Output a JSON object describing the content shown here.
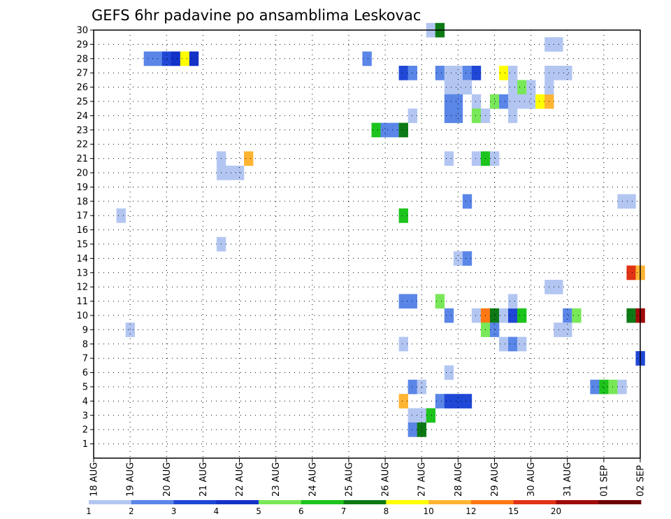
{
  "chart_data": {
    "type": "heatmap",
    "title": "GEFS 6hr padavine po ansamblima Leskovac",
    "xlabel": "",
    "ylabel": "",
    "x_ticks": [
      "18 AUG",
      "19 AUG",
      "20 AUG",
      "21 AUG",
      "22 AUG",
      "23 AUG",
      "24 AUG",
      "25 AUG",
      "26 AUG",
      "27 AUG",
      "28 AUG",
      "29 AUG",
      "30 AUG",
      "31 AUG",
      "01 SEP",
      "02 SEP"
    ],
    "x_range_days": [
      0,
      15
    ],
    "y_ticks": [
      1,
      2,
      3,
      4,
      5,
      6,
      7,
      8,
      9,
      10,
      11,
      12,
      13,
      14,
      15,
      16,
      17,
      18,
      19,
      20,
      21,
      22,
      23,
      24,
      25,
      26,
      27,
      28,
      29,
      30
    ],
    "y_range": [
      0,
      30
    ],
    "time_step_hours": 6,
    "grid": true,
    "colorbar": {
      "placement": "bottom",
      "labels": [
        "1",
        "2",
        "3",
        "4",
        "5",
        "6",
        "7",
        "8",
        "10",
        "12",
        "15",
        "20"
      ],
      "colors": [
        "#b3c6f2",
        "#5a86e8",
        "#1f48d6",
        "#1232c8",
        "#78e858",
        "#1cc41c",
        "#0c7a14",
        "#ffff00",
        "#ffb432",
        "#ff7814",
        "#e03214",
        "#a00a0a",
        "#6e0000"
      ]
    },
    "cells": [
      [
        1.5,
        1,
        28
      ],
      [
        1.75,
        1,
        28
      ],
      [
        2,
        2,
        28
      ],
      [
        2.25,
        3,
        28
      ],
      [
        2.5,
        7,
        28
      ],
      [
        2.75,
        3,
        28
      ],
      [
        3.5,
        0,
        20
      ],
      [
        3.5,
        0,
        21
      ],
      [
        3.75,
        0,
        20
      ],
      [
        4,
        0,
        20
      ],
      [
        4.25,
        8,
        21
      ],
      [
        0.75,
        0,
        17
      ],
      [
        1.0,
        0,
        9
      ],
      [
        3.5,
        0,
        15
      ],
      [
        7.5,
        1,
        28
      ],
      [
        7.75,
        5,
        23
      ],
      [
        8,
        1,
        23
      ],
      [
        8.25,
        1,
        23
      ],
      [
        8.5,
        6,
        23
      ],
      [
        8.5,
        2,
        27
      ],
      [
        8.75,
        1,
        27
      ],
      [
        8.75,
        0,
        24
      ],
      [
        8.5,
        5,
        17
      ],
      [
        8.5,
        1,
        11
      ],
      [
        8.75,
        1,
        11
      ],
      [
        8.5,
        0,
        8
      ],
      [
        8.75,
        1,
        5
      ],
      [
        9,
        0,
        5
      ],
      [
        8.5,
        8,
        4
      ],
      [
        8.75,
        0,
        3
      ],
      [
        9,
        0,
        3
      ],
      [
        9.25,
        5,
        3
      ],
      [
        8.75,
        1,
        2
      ],
      [
        9,
        6,
        2
      ],
      [
        9.25,
        0,
        30
      ],
      [
        9.5,
        6,
        30
      ],
      [
        9.5,
        1,
        27
      ],
      [
        9.75,
        0,
        27
      ],
      [
        10,
        0,
        27
      ],
      [
        10.25,
        1,
        27
      ],
      [
        10.5,
        2,
        27
      ],
      [
        9.75,
        0,
        26
      ],
      [
        10,
        0,
        26
      ],
      [
        10.25,
        0,
        26
      ],
      [
        9.75,
        1,
        25
      ],
      [
        10,
        1,
        25
      ],
      [
        9.75,
        1,
        24
      ],
      [
        10,
        1,
        24
      ],
      [
        9.75,
        0,
        21
      ],
      [
        9.5,
        4,
        11
      ],
      [
        9.75,
        1,
        10
      ],
      [
        9.75,
        0,
        6
      ],
      [
        9.5,
        1,
        4
      ],
      [
        9.75,
        2,
        4
      ],
      [
        10,
        2,
        4
      ],
      [
        10.25,
        2,
        4
      ],
      [
        10.25,
        1,
        18
      ],
      [
        10,
        0,
        14
      ],
      [
        10.25,
        1,
        14
      ],
      [
        10.5,
        0,
        25
      ],
      [
        10.5,
        4,
        24
      ],
      [
        10.75,
        0,
        24
      ],
      [
        10.5,
        0,
        21
      ],
      [
        10.75,
        5,
        21
      ],
      [
        11,
        0,
        21
      ],
      [
        10.5,
        0,
        10
      ],
      [
        10.75,
        9,
        10
      ],
      [
        11,
        6,
        10
      ],
      [
        11.25,
        0,
        10
      ],
      [
        11.5,
        2,
        10
      ],
      [
        11.75,
        5,
        10
      ],
      [
        10.75,
        4,
        9
      ],
      [
        11,
        1,
        9
      ],
      [
        11.25,
        7,
        27
      ],
      [
        11.5,
        0,
        27
      ],
      [
        11.5,
        0,
        26
      ],
      [
        11.75,
        4,
        26
      ],
      [
        12,
        0,
        26
      ],
      [
        11,
        4,
        25
      ],
      [
        11.25,
        1,
        25
      ],
      [
        11.5,
        0,
        25
      ],
      [
        11.75,
        0,
        25
      ],
      [
        12,
        0,
        25
      ],
      [
        12.25,
        7,
        25
      ],
      [
        12.5,
        8,
        25
      ],
      [
        11.5,
        0,
        24
      ],
      [
        11.5,
        0,
        11
      ],
      [
        11.25,
        0,
        8
      ],
      [
        11.5,
        1,
        8
      ],
      [
        11.75,
        0,
        8
      ],
      [
        12.5,
        0,
        29
      ],
      [
        12.75,
        0,
        29
      ],
      [
        12.5,
        0,
        27
      ],
      [
        12.75,
        0,
        27
      ],
      [
        13,
        0,
        27
      ],
      [
        12.5,
        0,
        26
      ],
      [
        12.5,
        0,
        12
      ],
      [
        12.75,
        0,
        12
      ],
      [
        13,
        1,
        10
      ],
      [
        13.25,
        4,
        10
      ],
      [
        12.75,
        0,
        9
      ],
      [
        13,
        0,
        9
      ],
      [
        13.75,
        1,
        5
      ],
      [
        14,
        5,
        5
      ],
      [
        14.25,
        4,
        5
      ],
      [
        14.5,
        0,
        5
      ],
      [
        14.5,
        0,
        18
      ],
      [
        14.75,
        0,
        18
      ],
      [
        14.75,
        10,
        13
      ],
      [
        15,
        8,
        13
      ],
      [
        14.75,
        6,
        10
      ],
      [
        15,
        11,
        10
      ],
      [
        15,
        2,
        7
      ]
    ]
  }
}
